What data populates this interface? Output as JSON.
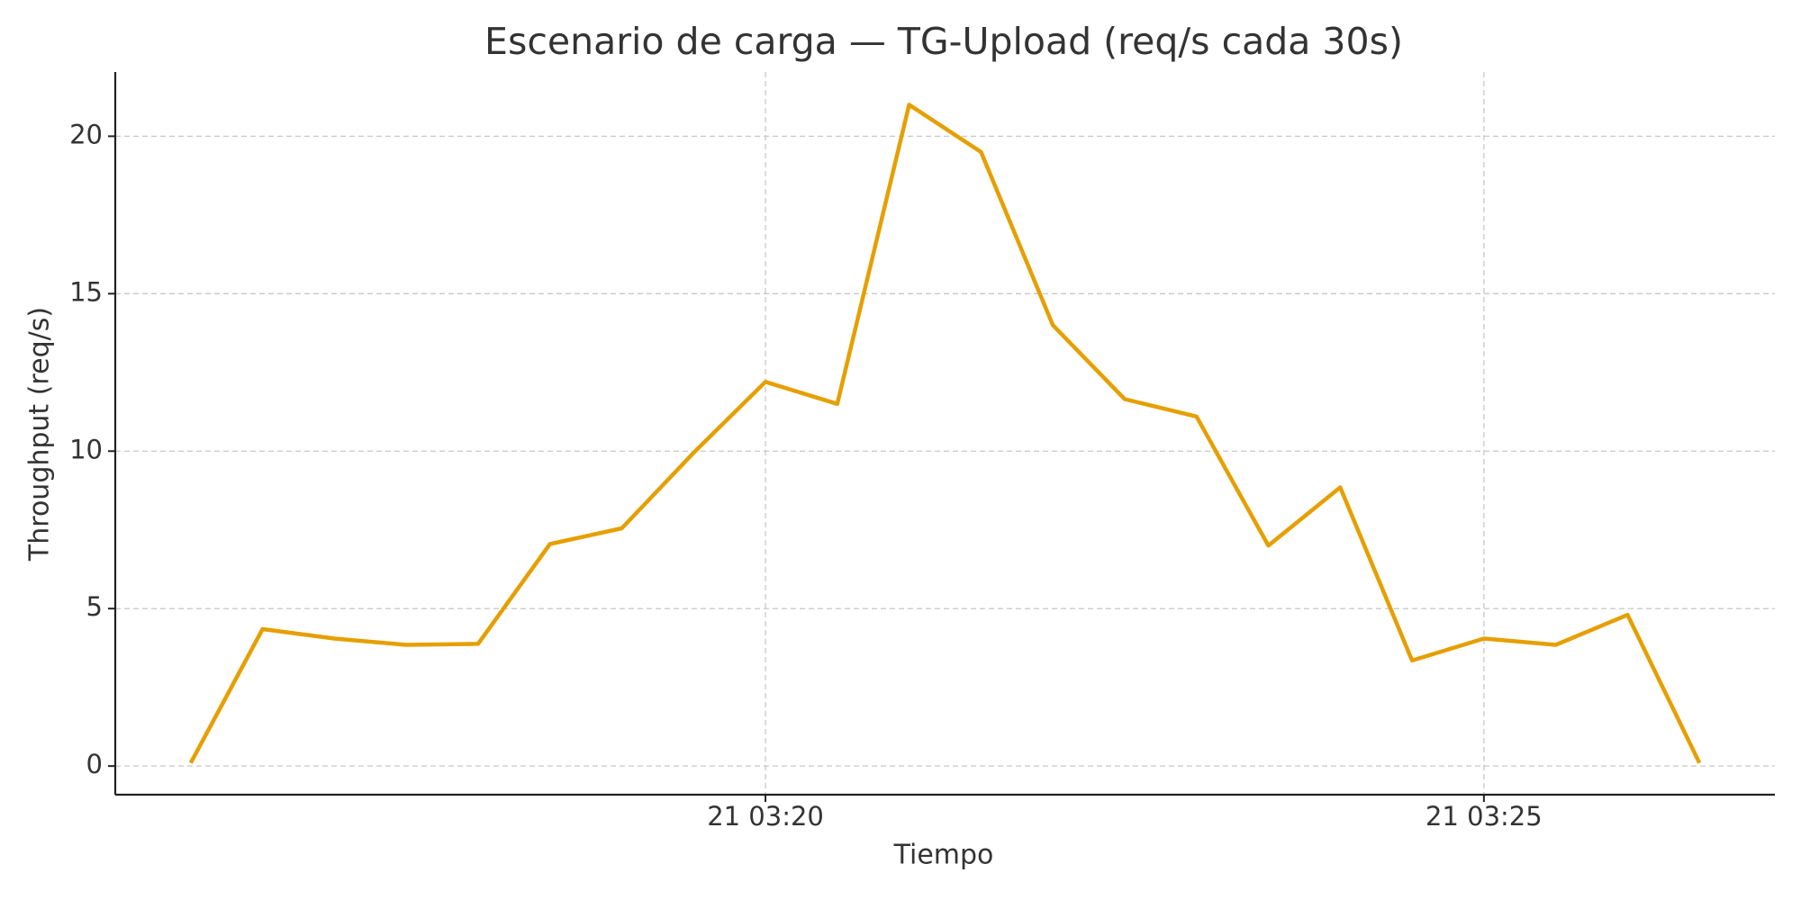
{
  "chart_data": {
    "type": "line",
    "title": "Escenario de carga — TG-Upload (req/s cada 30s)",
    "x_label": "Tiempo",
    "y_label": "Throughput (req/s)",
    "x": [
      "21 03:16:00",
      "21 03:16:30",
      "21 03:17:00",
      "21 03:17:30",
      "21 03:18:00",
      "21 03:18:30",
      "21 03:19:00",
      "21 03:19:30",
      "21 03:20:00",
      "21 03:20:30",
      "21 03:21:00",
      "21 03:21:30",
      "21 03:22:00",
      "21 03:22:30",
      "21 03:23:00",
      "21 03:23:30",
      "21 03:24:00",
      "21 03:24:30",
      "21 03:25:00",
      "21 03:25:30",
      "21 03:26:00",
      "21 03:26:30"
    ],
    "series": [
      {
        "name": "TG-Upload",
        "color": "#e69f00",
        "values": [
          0.1,
          4.35,
          4.05,
          3.85,
          3.88,
          7.05,
          7.55,
          9.95,
          12.2,
          11.5,
          21.0,
          19.5,
          14.0,
          11.65,
          11.1,
          7.0,
          8.85,
          3.35,
          4.05,
          3.85,
          4.8,
          0.1
        ]
      }
    ],
    "xlim": [
      "21 03:15:28.5",
      "21 03:27:01.5"
    ],
    "xticks": [
      {
        "value": "21 03:20:00",
        "label": "21 03:20"
      },
      {
        "value": "21 03:25:00",
        "label": "21 03:25"
      }
    ],
    "ylim": [
      -0.91,
      22.04
    ],
    "yticks": [
      0,
      5,
      10,
      15,
      20
    ],
    "grid": true
  }
}
